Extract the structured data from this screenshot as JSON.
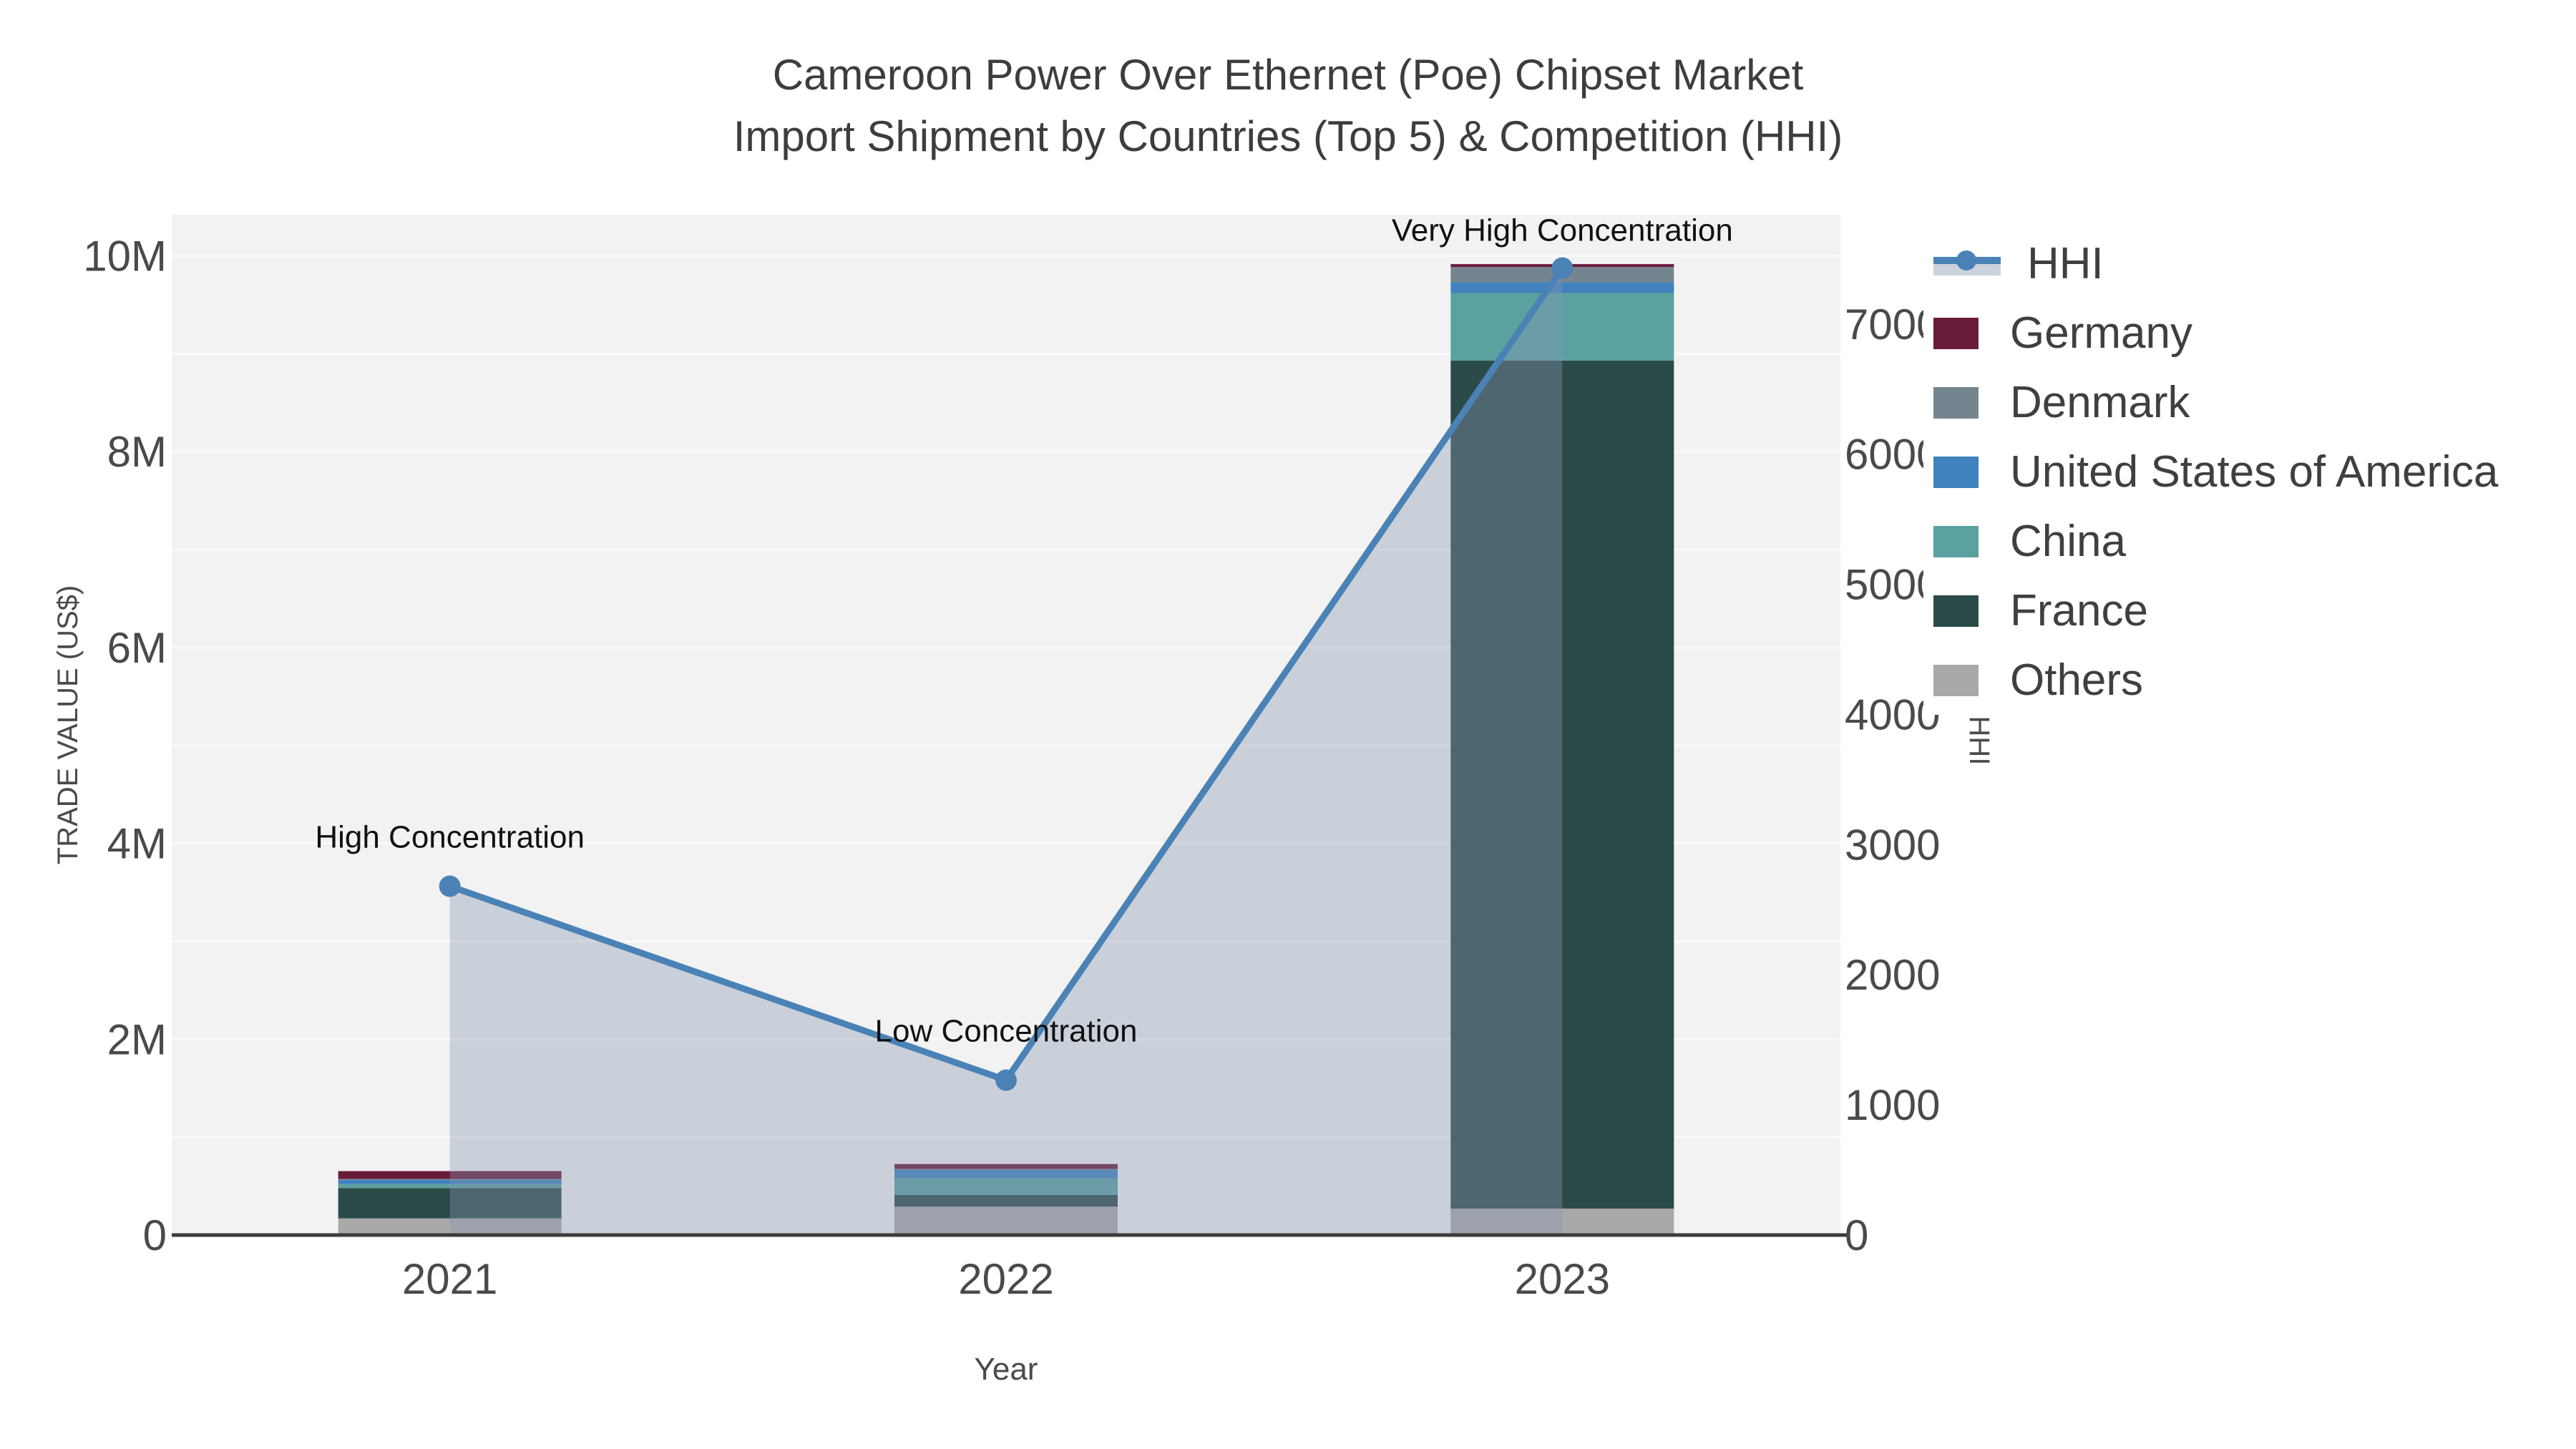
{
  "title": {
    "line1": "Cameroon Power Over Ethernet (Poe) Chipset Market",
    "line2": "Import Shipment by Countries (Top 5) & Competition (HHI)"
  },
  "chart_data": {
    "type": "bar",
    "subtype": "stacked-bar-with-line-dual-axis",
    "categories": [
      "2021",
      "2022",
      "2023"
    ],
    "bar_series": [
      {
        "name": "Others",
        "color": "#a9a9a7",
        "values_usd": [
          170000,
          290000,
          270000
        ]
      },
      {
        "name": "France",
        "color": "#2b4b49",
        "values_usd": [
          310000,
          120000,
          8660000
        ]
      },
      {
        "name": "China",
        "color": "#5ba1a0",
        "values_usd": [
          40000,
          170000,
          690000
        ]
      },
      {
        "name": "United States of America",
        "color": "#3f82bd",
        "values_usd": [
          45000,
          85000,
          110000
        ]
      },
      {
        "name": "Denmark",
        "color": "#75858f",
        "values_usd": [
          8000,
          10000,
          155000
        ]
      },
      {
        "name": "Germany",
        "color": "#691b3b",
        "values_usd": [
          80000,
          50000,
          30000
        ]
      }
    ],
    "line_series": {
      "name": "HHI",
      "color": "#4a82b6",
      "area_fill": "rgba(136,150,178,0.37)",
      "values": [
        2680,
        1190,
        7430
      ],
      "annotations": [
        "High Concentration",
        "Low Concentration",
        "Very High Concentration"
      ]
    },
    "x_axis": {
      "title": "Year",
      "ticks": [
        "2021",
        "2022",
        "2023"
      ]
    },
    "y_left": {
      "title": "TRADE VALUE (US$)",
      "tick_labels": [
        "0",
        "2M",
        "4M",
        "6M",
        "8M",
        "10M"
      ],
      "tick_values_musd": [
        0,
        2,
        4,
        6,
        8,
        10
      ],
      "range_musd": [
        0,
        10.42
      ],
      "grid_step_musd": 1
    },
    "y_right": {
      "title": "HHI",
      "tick_labels": [
        "0",
        "1000",
        "2000",
        "3000",
        "4000",
        "5000",
        "6000",
        "7000"
      ],
      "tick_values": [
        0,
        1000,
        2000,
        3000,
        4000,
        5000,
        6000,
        7000
      ],
      "range": [
        0,
        7840
      ]
    },
    "legend": [
      {
        "label": "HHI",
        "type": "line"
      },
      {
        "label": "Germany",
        "color": "#691b3b"
      },
      {
        "label": "Denmark",
        "color": "#75858f"
      },
      {
        "label": "United States of America",
        "color": "#3f82bd"
      },
      {
        "label": "China",
        "color": "#5ba1a0"
      },
      {
        "label": "France",
        "color": "#2b4b49"
      },
      {
        "label": "Others",
        "color": "#a9a9a7"
      }
    ]
  },
  "colors": {
    "plot_bg": "#f1f2f1",
    "grid": "#fafafa",
    "axis_line": "#3b3b3b",
    "text": "#4a4a4a"
  }
}
